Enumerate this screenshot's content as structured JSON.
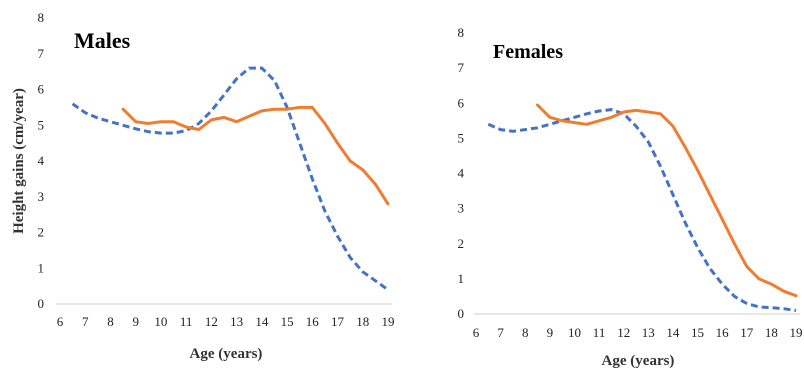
{
  "chart_data": [
    {
      "type": "line",
      "title": "Males",
      "xlabel": "Age (years)",
      "ylabel": "Height gains (cm/year)",
      "xlim": [
        6,
        19
      ],
      "ylim": [
        0,
        8
      ],
      "x_ticks": [
        "6",
        "7",
        "8",
        "9",
        "10",
        "11",
        "12",
        "13",
        "14",
        "15",
        "16",
        "17",
        "18",
        "19"
      ],
      "y_ticks": [
        "0",
        "1",
        "2",
        "3",
        "4",
        "5",
        "6",
        "7",
        "8"
      ],
      "grid": false,
      "colors": {
        "dashed_series": "#4472C4",
        "solid_series": "#ED7D31"
      },
      "series": [
        {
          "style": "dashed",
          "x": [
            6.5,
            7,
            7.5,
            8,
            8.5,
            9,
            9.5,
            10,
            10.5,
            11,
            11.5,
            12,
            12.5,
            13,
            13.5,
            14,
            14.5,
            15,
            15.5,
            16,
            16.5,
            17,
            17.5,
            18,
            18.5,
            19
          ],
          "y": [
            5.6,
            5.35,
            5.2,
            5.1,
            5.0,
            4.9,
            4.82,
            4.78,
            4.78,
            4.85,
            5.05,
            5.4,
            5.85,
            6.3,
            6.6,
            6.6,
            6.25,
            5.5,
            4.5,
            3.5,
            2.6,
            1.9,
            1.3,
            0.9,
            0.65,
            0.4
          ]
        },
        {
          "style": "solid",
          "x": [
            8.5,
            9,
            9.5,
            10,
            10.5,
            11,
            11.5,
            12,
            12.5,
            13,
            13.5,
            14,
            14.5,
            15,
            15.5,
            16,
            16.5,
            17,
            17.5,
            18,
            18.5,
            19
          ],
          "y": [
            5.45,
            5.1,
            5.05,
            5.1,
            5.1,
            4.95,
            4.88,
            5.15,
            5.22,
            5.1,
            5.25,
            5.4,
            5.45,
            5.45,
            5.5,
            5.5,
            5.05,
            4.5,
            4.0,
            3.75,
            3.35,
            2.8
          ]
        }
      ]
    },
    {
      "type": "line",
      "title": "Females",
      "xlabel": "Age (years)",
      "ylabel": "",
      "xlim": [
        6,
        19
      ],
      "ylim": [
        0,
        8
      ],
      "x_ticks": [
        "6",
        "7",
        "8",
        "9",
        "10",
        "11",
        "12",
        "13",
        "14",
        "15",
        "16",
        "17",
        "18",
        "19"
      ],
      "y_ticks": [
        "0",
        "1",
        "2",
        "3",
        "4",
        "5",
        "6",
        "7",
        "8"
      ],
      "grid": false,
      "colors": {
        "dashed_series": "#4472C4",
        "solid_series": "#ED7D31"
      },
      "series": [
        {
          "style": "dashed",
          "x": [
            6.5,
            7,
            7.5,
            8,
            8.5,
            9,
            9.5,
            10,
            10.5,
            11,
            11.5,
            12,
            12.5,
            13,
            13.5,
            14,
            14.5,
            15,
            15.5,
            16,
            16.5,
            17,
            17.5,
            18,
            18.5,
            19
          ],
          "y": [
            5.4,
            5.25,
            5.2,
            5.25,
            5.3,
            5.4,
            5.5,
            5.6,
            5.7,
            5.78,
            5.82,
            5.7,
            5.35,
            4.9,
            4.2,
            3.4,
            2.6,
            1.9,
            1.3,
            0.85,
            0.5,
            0.3,
            0.2,
            0.18,
            0.15,
            0.1
          ]
        },
        {
          "style": "solid",
          "x": [
            8.5,
            9,
            9.5,
            10,
            10.5,
            11,
            11.5,
            12,
            12.5,
            13,
            13.5,
            14,
            14.5,
            15,
            15.5,
            16,
            16.5,
            17,
            17.5,
            18,
            18.5,
            19
          ],
          "y": [
            5.95,
            5.6,
            5.5,
            5.45,
            5.4,
            5.5,
            5.6,
            5.75,
            5.8,
            5.75,
            5.7,
            5.35,
            4.75,
            4.1,
            3.4,
            2.7,
            2.0,
            1.35,
            1.0,
            0.85,
            0.65,
            0.52
          ]
        }
      ]
    }
  ]
}
